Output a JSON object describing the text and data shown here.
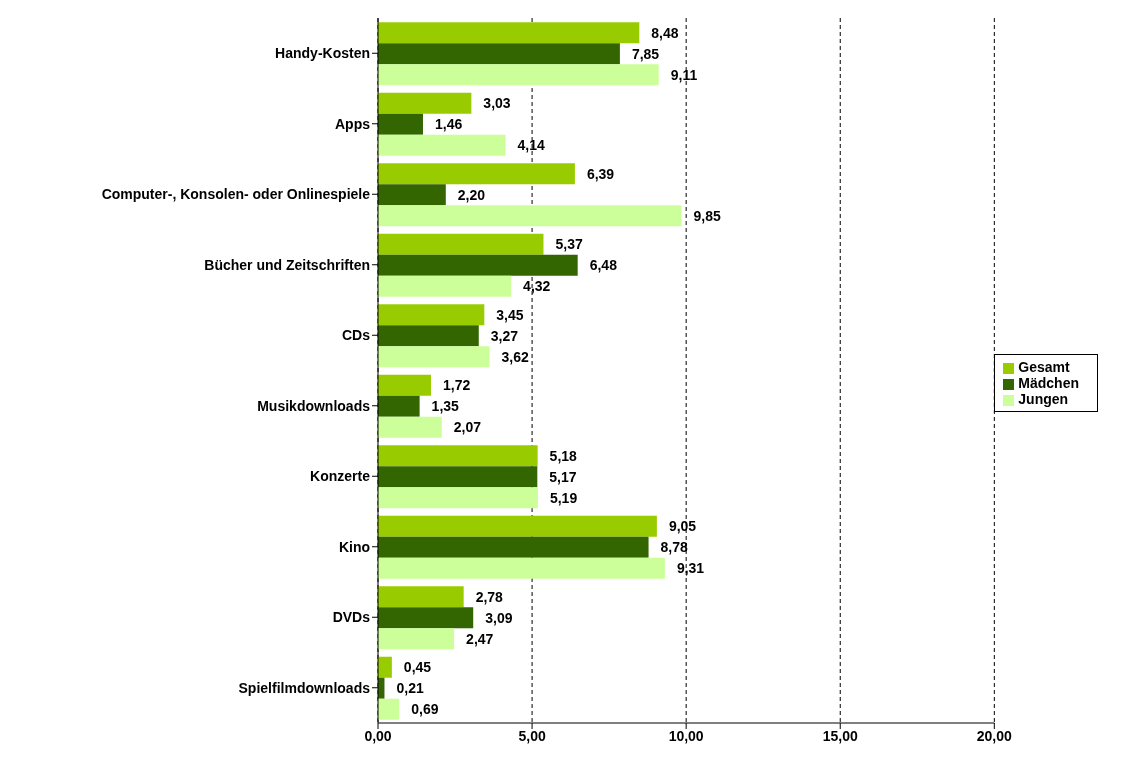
{
  "chart_data": {
    "type": "bar",
    "orientation": "horizontal",
    "categories": [
      "Handy-Kosten",
      "Apps",
      "Computer-, Konsolen- oder Onlinespiele",
      "Bücher und Zeitschriften",
      "CDs",
      "Musikdownloads",
      "Konzerte",
      "Kino",
      "DVDs",
      "Spielfilmdownloads"
    ],
    "series": [
      {
        "name": "Gesamt",
        "color": "#99cc00",
        "values": [
          8.48,
          3.03,
          6.39,
          5.37,
          3.45,
          1.72,
          5.18,
          9.05,
          2.78,
          0.45
        ],
        "value_labels": [
          "8,48",
          "3,03",
          "6,39",
          "5,37",
          "3,45",
          "1,72",
          "5,18",
          "9,05",
          "2,78",
          "0,45"
        ]
      },
      {
        "name": "Mädchen",
        "color": "#336600",
        "values": [
          7.85,
          1.46,
          2.2,
          6.48,
          3.27,
          1.35,
          5.17,
          8.78,
          3.09,
          0.21
        ],
        "value_labels": [
          "7,85",
          "1,46",
          "2,20",
          "6,48",
          "3,27",
          "1,35",
          "5,17",
          "8,78",
          "3,09",
          "0,21"
        ]
      },
      {
        "name": "Jungen",
        "color": "#ccff99",
        "values": [
          9.11,
          4.14,
          9.85,
          4.32,
          3.62,
          2.07,
          5.19,
          9.31,
          2.47,
          0.69
        ],
        "value_labels": [
          "9,11",
          "4,14",
          "9,85",
          "4,32",
          "3,62",
          "2,07",
          "5,19",
          "9,31",
          "2,47",
          "0,69"
        ]
      }
    ],
    "xlim": [
      0,
      20
    ],
    "xticks": [
      {
        "value": 0,
        "label": "0,00"
      },
      {
        "value": 5,
        "label": "5,00"
      },
      {
        "value": 10,
        "label": "10,00"
      },
      {
        "value": 15,
        "label": "15,00"
      },
      {
        "value": 20,
        "label": "20,00"
      }
    ],
    "grid": "x",
    "legend": "right"
  }
}
